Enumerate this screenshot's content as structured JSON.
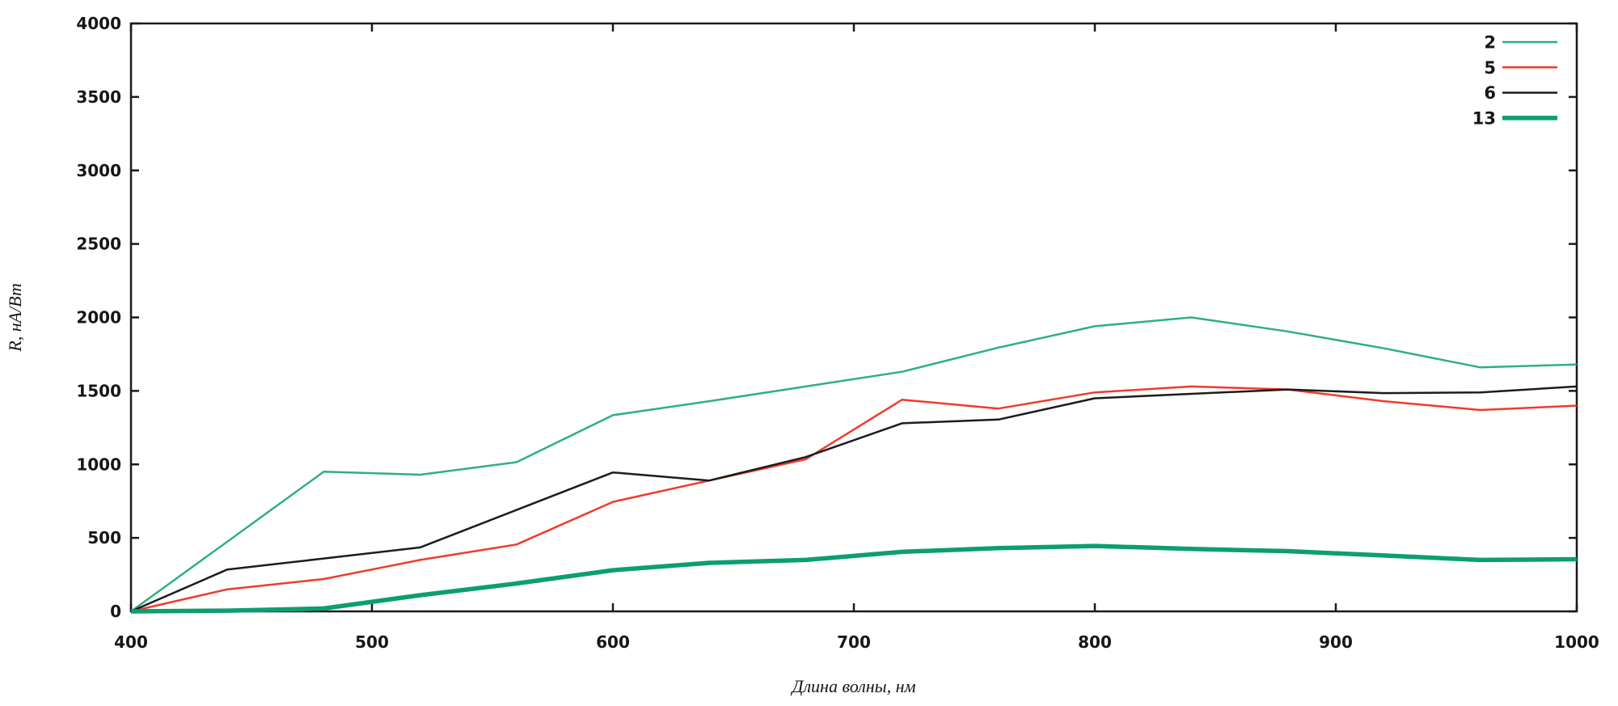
{
  "figure": {
    "background": "#ffffff",
    "border_color": "#1a1a1a",
    "text_color": "#161616"
  },
  "chart_data": {
    "type": "line",
    "title": "",
    "xlabel": "Длина волны, нм",
    "ylabel": "R, нА/Вт",
    "xlim": [
      400,
      1000
    ],
    "ylim": [
      0,
      4000
    ],
    "x_ticks": [
      400,
      500,
      600,
      700,
      800,
      900,
      1000
    ],
    "y_ticks": [
      0,
      500,
      1000,
      1500,
      2000,
      2500,
      3000,
      3500,
      4000
    ],
    "grid": false,
    "mirror_ticks": true,
    "legend_position": "top-right",
    "x": [
      400,
      440,
      480,
      520,
      560,
      600,
      640,
      680,
      720,
      760,
      800,
      840,
      880,
      920,
      960,
      1000
    ],
    "series": [
      {
        "name": "2",
        "color": "#2fb07d",
        "stroke_width": 2.5,
        "values": [
          0,
          475,
          950,
          930,
          1015,
          1335,
          1430,
          1530,
          1630,
          1795,
          1940,
          2000,
          1905,
          1790,
          1660,
          1680
        ]
      },
      {
        "name": "5",
        "color": "#ef3b2d",
        "stroke_width": 2.5,
        "values": [
          0,
          150,
          220,
          350,
          455,
          745,
          890,
          1035,
          1440,
          1380,
          1490,
          1530,
          1510,
          1430,
          1370,
          1400
        ]
      },
      {
        "name": "6",
        "color": "#1c1c1c",
        "stroke_width": 2.5,
        "values": [
          0,
          285,
          360,
          435,
          690,
          945,
          890,
          1050,
          1280,
          1305,
          1450,
          1480,
          1510,
          1485,
          1490,
          1530
        ]
      },
      {
        "name": "13",
        "color": "#0c9e73",
        "stroke_width": 5.5,
        "values": [
          0,
          5,
          20,
          110,
          190,
          280,
          330,
          350,
          405,
          430,
          445,
          425,
          410,
          380,
          350,
          355
        ]
      }
    ]
  }
}
